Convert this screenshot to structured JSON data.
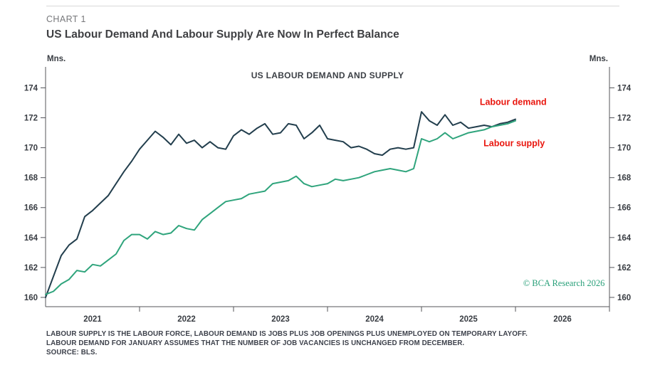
{
  "header": {
    "kicker": "CHART 1",
    "title": "US Labour Demand And Labour Supply Are Now In Perfect Balance"
  },
  "footnotes": {
    "line1": "LABOUR SUPPLY IS THE LABOUR FORCE, LABOUR DEMAND IS JOBS PLUS JOB OPENINGS PLUS UNEMPLOYED ON TEMPORARY LAYOFF.",
    "line2": "LABOUR DEMAND FOR JANUARY ASSUMES THAT THE NUMBER OF JOB VACANCIES IS UNCHANGED FROM DECEMBER.",
    "line3": "SOURCE: BLS."
  },
  "chart_data": {
    "type": "line",
    "title": "US LABOUR DEMAND AND SUPPLY",
    "unit_label_left": "Mns.",
    "unit_label_right": "Mns.",
    "x_start": 2021.0,
    "x_frequency": "monthly",
    "xlim": [
      2021.0,
      2027.0
    ],
    "ylim": [
      159.38,
      175.4
    ],
    "yticks": [
      160,
      162,
      164,
      166,
      168,
      170,
      172,
      174
    ],
    "xtick_year_labels": [
      2021,
      2022,
      2023,
      2024,
      2025,
      2026
    ],
    "grid": false,
    "colors": {
      "axis": "#54555a",
      "demand_line": "#223e4d",
      "supply_line": "#2fa47c",
      "series_label": "#e9150d",
      "watermark": "#2aa07a"
    },
    "series": [
      {
        "name": "Labour demand",
        "key": "labour-demand",
        "color": "#223e4d",
        "values": [
          160.0,
          161.4,
          162.8,
          163.5,
          163.9,
          165.4,
          165.8,
          166.3,
          166.8,
          167.6,
          168.4,
          169.1,
          169.9,
          170.5,
          171.1,
          170.7,
          170.2,
          170.9,
          170.3,
          170.5,
          170.0,
          170.4,
          170.0,
          169.9,
          170.8,
          171.2,
          170.9,
          171.3,
          171.6,
          170.9,
          171.0,
          171.6,
          171.5,
          170.6,
          171.0,
          171.5,
          170.6,
          170.5,
          170.4,
          170.0,
          170.1,
          169.9,
          169.6,
          169.5,
          169.9,
          170.0,
          169.9,
          170.0,
          172.4,
          171.8,
          171.5,
          172.2,
          171.5,
          171.7,
          171.3,
          171.4,
          171.5,
          171.4,
          171.6,
          171.7,
          171.9
        ]
      },
      {
        "name": "Labour supply",
        "key": "labour-supply",
        "color": "#2fa47c",
        "values": [
          160.2,
          160.4,
          160.9,
          161.2,
          161.8,
          161.7,
          162.2,
          162.1,
          162.5,
          162.9,
          163.8,
          164.2,
          164.2,
          163.9,
          164.4,
          164.2,
          164.3,
          164.8,
          164.6,
          164.5,
          165.2,
          165.6,
          166.0,
          166.4,
          166.5,
          166.6,
          166.9,
          167.0,
          167.1,
          167.6,
          167.7,
          167.8,
          168.1,
          167.6,
          167.4,
          167.5,
          167.6,
          167.9,
          167.8,
          167.9,
          168.0,
          168.2,
          168.4,
          168.5,
          168.6,
          168.5,
          168.4,
          168.6,
          170.6,
          170.4,
          170.6,
          171.0,
          170.6,
          170.8,
          171.0,
          171.1,
          171.2,
          171.4,
          171.5,
          171.6,
          171.8
        ]
      }
    ],
    "annotations": [
      {
        "text": "Labour demand",
        "x": 2025.62,
        "y": 172.85,
        "color": "#e9150d"
      },
      {
        "text": "Labour supply",
        "x": 2025.66,
        "y": 170.1,
        "color": "#e9150d"
      }
    ],
    "watermark": {
      "text": "© BCA Research 2026",
      "x": 2026.95,
      "y": 160.75
    }
  }
}
